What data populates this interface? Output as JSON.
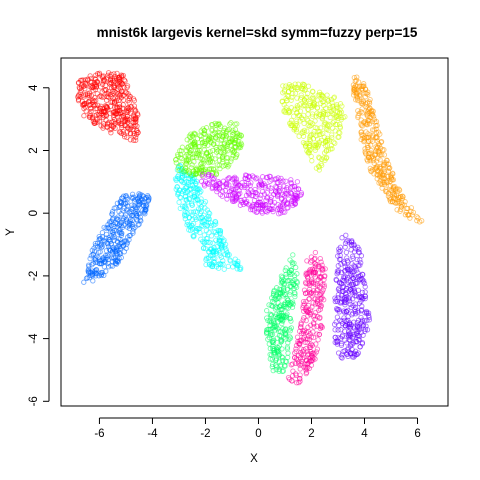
{
  "chart_data": {
    "type": "scatter",
    "title": "mnist6k largevis kernel=skd symm=fuzzy perp=15",
    "xlabel": "X",
    "ylabel": "Y",
    "xlim": [
      -7.45,
      7.15
    ],
    "ylim": [
      -6.15,
      4.95
    ],
    "xticks": [
      -6,
      -4,
      -2,
      0,
      2,
      4,
      6
    ],
    "yticks": [
      -6,
      -4,
      -2,
      0,
      2,
      4
    ],
    "xtick_labels": [
      "-6",
      "-4",
      "-2",
      "0",
      "2",
      "4",
      "6"
    ],
    "ytick_labels": [
      "-6",
      "-4",
      "-2",
      "0",
      "2",
      "4"
    ],
    "marker": "open-circle",
    "grid": false,
    "legend": "none",
    "clusters": [
      {
        "color": "#ff0000",
        "polygon": [
          [
            -6.8,
            4.2
          ],
          [
            -6.2,
            4.45
          ],
          [
            -5.6,
            4.5
          ],
          [
            -5.1,
            4.45
          ],
          [
            -4.9,
            4.0
          ],
          [
            -4.55,
            3.4
          ],
          [
            -4.45,
            2.7
          ],
          [
            -4.6,
            2.3
          ],
          [
            -4.9,
            2.3
          ],
          [
            -5.3,
            2.6
          ],
          [
            -5.6,
            2.55
          ],
          [
            -6.0,
            2.75
          ],
          [
            -6.4,
            2.95
          ],
          [
            -6.7,
            3.2
          ],
          [
            -6.85,
            3.7
          ]
        ],
        "count": 380
      },
      {
        "color": "#0066ff",
        "polygon": [
          [
            -6.6,
            -2.25
          ],
          [
            -6.0,
            -2.1
          ],
          [
            -5.4,
            -1.7
          ],
          [
            -5.0,
            -1.2
          ],
          [
            -4.6,
            -0.5
          ],
          [
            -4.2,
            0.1
          ],
          [
            -4.05,
            0.55
          ],
          [
            -4.4,
            0.65
          ],
          [
            -5.2,
            0.55
          ],
          [
            -5.8,
            -0.4
          ],
          [
            -6.3,
            -1.2
          ],
          [
            -6.5,
            -1.8
          ]
        ],
        "count": 340
      },
      {
        "color": "#00ffff",
        "polygon": [
          [
            -3.0,
            1.6
          ],
          [
            -2.4,
            1.2
          ],
          [
            -2.0,
            0.4
          ],
          [
            -1.4,
            -0.6
          ],
          [
            -0.8,
            -1.5
          ],
          [
            -0.6,
            -1.8
          ],
          [
            -1.3,
            -1.8
          ],
          [
            -2.0,
            -1.7
          ],
          [
            -2.1,
            -1.0
          ],
          [
            -2.7,
            -0.6
          ],
          [
            -3.0,
            0.2
          ],
          [
            -3.2,
            1.0
          ]
        ],
        "count": 300
      },
      {
        "color": "#66ff00",
        "polygon": [
          [
            -3.2,
            1.7
          ],
          [
            -2.5,
            2.6
          ],
          [
            -1.4,
            2.95
          ],
          [
            -0.7,
            2.85
          ],
          [
            -0.55,
            2.3
          ],
          [
            -0.9,
            1.7
          ],
          [
            -1.4,
            1.25
          ],
          [
            -2.0,
            1.2
          ],
          [
            -2.6,
            1.2
          ],
          [
            -3.0,
            1.35
          ]
        ],
        "count": 300
      },
      {
        "color": "#cc00ff",
        "polygon": [
          [
            -2.1,
            1.3
          ],
          [
            -1.4,
            1.1
          ],
          [
            -0.4,
            1.25
          ],
          [
            0.8,
            1.15
          ],
          [
            1.55,
            1.0
          ],
          [
            1.65,
            0.5
          ],
          [
            1.2,
            0.05
          ],
          [
            0.6,
            -0.05
          ],
          [
            -0.2,
            0.0
          ],
          [
            -0.9,
            0.3
          ],
          [
            -1.5,
            0.6
          ],
          [
            -2.2,
            0.9
          ]
        ],
        "count": 300
      },
      {
        "color": "#ccff00",
        "polygon": [
          [
            0.9,
            4.1
          ],
          [
            1.6,
            4.15
          ],
          [
            2.4,
            3.9
          ],
          [
            3.2,
            3.6
          ],
          [
            3.3,
            3.0
          ],
          [
            3.05,
            2.4
          ],
          [
            2.6,
            1.8
          ],
          [
            2.3,
            1.25
          ],
          [
            2.05,
            1.6
          ],
          [
            1.7,
            2.2
          ],
          [
            1.1,
            2.9
          ],
          [
            0.85,
            3.5
          ]
        ],
        "count": 300
      },
      {
        "color": "#ff9900",
        "polygon": [
          [
            3.6,
            4.4
          ],
          [
            4.0,
            4.2
          ],
          [
            4.4,
            3.2
          ],
          [
            4.8,
            1.8
          ],
          [
            5.4,
            0.6
          ],
          [
            6.1,
            -0.2
          ],
          [
            6.3,
            -0.35
          ],
          [
            5.7,
            -0.2
          ],
          [
            5.1,
            0.15
          ],
          [
            4.6,
            0.8
          ],
          [
            4.2,
            1.4
          ],
          [
            3.9,
            2.2
          ],
          [
            3.7,
            3.2
          ],
          [
            3.55,
            3.9
          ]
        ],
        "count": 320
      },
      {
        "color": "#00ff66",
        "polygon": [
          [
            1.3,
            -1.3
          ],
          [
            1.5,
            -2.0
          ],
          [
            1.3,
            -3.2
          ],
          [
            1.2,
            -4.3
          ],
          [
            1.0,
            -5.2
          ],
          [
            0.5,
            -5.0
          ],
          [
            0.3,
            -4.2
          ],
          [
            0.3,
            -3.1
          ],
          [
            0.6,
            -2.4
          ],
          [
            1.0,
            -1.8
          ]
        ],
        "count": 260
      },
      {
        "color": "#ff0099",
        "polygon": [
          [
            2.1,
            -1.15
          ],
          [
            2.55,
            -1.7
          ],
          [
            2.5,
            -2.8
          ],
          [
            2.4,
            -3.8
          ],
          [
            2.1,
            -4.8
          ],
          [
            1.5,
            -5.45
          ],
          [
            1.1,
            -5.3
          ],
          [
            1.35,
            -4.4
          ],
          [
            1.6,
            -3.4
          ],
          [
            1.75,
            -2.3
          ],
          [
            1.8,
            -1.5
          ]
        ],
        "count": 270
      },
      {
        "color": "#6600ff",
        "polygon": [
          [
            3.2,
            -0.6
          ],
          [
            3.9,
            -1.2
          ],
          [
            4.05,
            -2.4
          ],
          [
            4.2,
            -3.5
          ],
          [
            3.8,
            -4.5
          ],
          [
            3.3,
            -4.75
          ],
          [
            2.9,
            -4.4
          ],
          [
            2.85,
            -3.3
          ],
          [
            2.9,
            -2.3
          ],
          [
            3.0,
            -1.2
          ]
        ],
        "count": 330
      }
    ]
  }
}
